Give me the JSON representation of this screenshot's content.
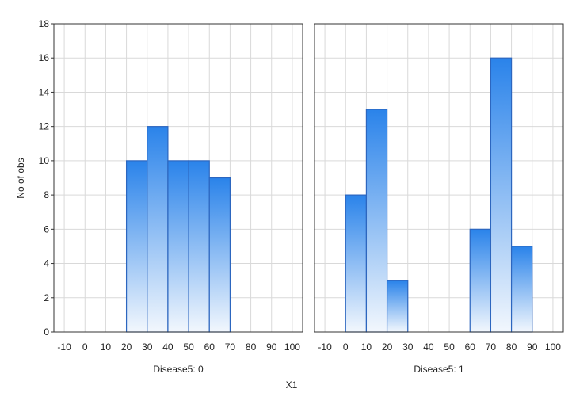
{
  "chart_data": {
    "type": "bar",
    "kind": "histogram-panels",
    "ylabel": "No of obs",
    "xlabel": "X1",
    "ylim": [
      0,
      18
    ],
    "yticks": [
      0,
      2,
      4,
      6,
      8,
      10,
      12,
      14,
      16,
      18
    ],
    "xlim": [
      -15,
      105
    ],
    "xticks": [
      -10,
      0,
      10,
      20,
      30,
      40,
      50,
      60,
      70,
      80,
      90,
      100
    ],
    "bin_width": 10,
    "grid": true,
    "bar_color_top": "#2a83ea",
    "bar_color_bottom": "#f2f7fd",
    "bar_edge": "#2c66bf",
    "panels": [
      {
        "label": "Disease5: 0",
        "bins": [
          {
            "x0": 20,
            "x1": 30,
            "count": 10
          },
          {
            "x0": 30,
            "x1": 40,
            "count": 12
          },
          {
            "x0": 40,
            "x1": 50,
            "count": 10
          },
          {
            "x0": 50,
            "x1": 60,
            "count": 10
          },
          {
            "x0": 60,
            "x1": 70,
            "count": 9
          }
        ]
      },
      {
        "label": "Disease5: 1",
        "bins": [
          {
            "x0": 0,
            "x1": 10,
            "count": 8
          },
          {
            "x0": 10,
            "x1": 20,
            "count": 13
          },
          {
            "x0": 20,
            "x1": 30,
            "count": 3
          },
          {
            "x0": 60,
            "x1": 70,
            "count": 6
          },
          {
            "x0": 70,
            "x1": 80,
            "count": 16
          },
          {
            "x0": 80,
            "x1": 90,
            "count": 5
          }
        ]
      }
    ]
  }
}
